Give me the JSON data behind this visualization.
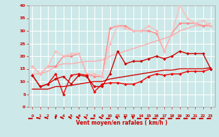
{
  "background_color": "#cce8e8",
  "grid_color": "#ffffff",
  "xlabel": "Vent moyen/en rafales ( km/h )",
  "xlim": [
    -0.5,
    23.5
  ],
  "ylim": [
    0,
    40
  ],
  "xticks": [
    0,
    1,
    2,
    3,
    4,
    5,
    6,
    7,
    8,
    9,
    10,
    11,
    12,
    13,
    14,
    15,
    16,
    17,
    18,
    19,
    20,
    21,
    22,
    23
  ],
  "yticks": [
    0,
    5,
    10,
    15,
    20,
    25,
    30,
    35,
    40
  ],
  "lines": [
    {
      "x": [
        0,
        1,
        2,
        3,
        4,
        5,
        6,
        7,
        8,
        9,
        10,
        11,
        12,
        13,
        14,
        15,
        16,
        17,
        18,
        19,
        20,
        21,
        22,
        23
      ],
      "y": [
        12.5,
        8,
        9,
        11,
        12,
        9,
        12.5,
        12,
        8,
        8,
        13,
        22,
        17,
        18,
        18,
        19,
        20,
        19,
        20,
        22,
        21,
        21,
        21,
        15
      ],
      "color": "#cc0000",
      "lw": 1.0,
      "marker": "D",
      "ms": 2.0,
      "zorder": 5
    },
    {
      "x": [
        0,
        1,
        2,
        3,
        4,
        5,
        6,
        7,
        8,
        9,
        10,
        11,
        12,
        13,
        14,
        15,
        16,
        17,
        18,
        19,
        20,
        21,
        22,
        23
      ],
      "y": [
        12.5,
        8,
        9,
        13,
        5,
        12.5,
        13,
        12.5,
        6,
        9,
        9.5,
        9.5,
        9,
        9,
        10,
        12,
        13,
        12.5,
        13,
        13,
        14,
        14,
        14,
        15
      ],
      "color": "#ee0000",
      "lw": 1.0,
      "marker": "D",
      "ms": 2.0,
      "zorder": 4
    },
    {
      "x": [
        0,
        1,
        2,
        3,
        4,
        5,
        6,
        7,
        8,
        9,
        10,
        11,
        12,
        13,
        14,
        15,
        16,
        17,
        18,
        19,
        20,
        21,
        22,
        23
      ],
      "y": [
        7,
        7,
        7,
        8,
        8,
        8.5,
        9,
        9.5,
        10,
        10,
        11,
        11.5,
        12,
        12.5,
        13,
        13.5,
        14,
        14.5,
        14.5,
        15,
        15,
        15,
        15,
        15.5
      ],
      "color": "#cc0000",
      "lw": 1.0,
      "marker": null,
      "ms": 0,
      "zorder": 3
    },
    {
      "x": [
        0,
        1,
        2,
        3,
        4,
        5,
        6,
        7,
        8,
        9,
        10,
        11,
        12,
        13,
        14,
        15,
        16,
        17,
        18,
        19,
        20,
        21,
        22,
        23
      ],
      "y": [
        16,
        13,
        16,
        16,
        20,
        20,
        21,
        13,
        12,
        12,
        31,
        32,
        32,
        30,
        30,
        30,
        29,
        22,
        29,
        33,
        33,
        33,
        32,
        32
      ],
      "color": "#ff8888",
      "lw": 1.0,
      "marker": "D",
      "ms": 2.0,
      "zorder": 3
    },
    {
      "x": [
        0,
        1,
        2,
        3,
        4,
        5,
        6,
        7,
        8,
        9,
        10,
        11,
        12,
        13,
        14,
        15,
        16,
        17,
        18,
        19,
        20,
        21,
        22,
        23
      ],
      "y": [
        16,
        13,
        16,
        22,
        20,
        21,
        21,
        13,
        13,
        12,
        25,
        32,
        31,
        30,
        30,
        32,
        30,
        22,
        29,
        40,
        35,
        33,
        34,
        32
      ],
      "color": "#ffbbbb",
      "lw": 1.0,
      "marker": "D",
      "ms": 2.0,
      "zorder": 3
    },
    {
      "x": [
        0,
        1,
        2,
        3,
        4,
        5,
        6,
        7,
        8,
        9,
        10,
        11,
        12,
        13,
        14,
        15,
        16,
        17,
        18,
        19,
        20,
        21,
        22,
        23
      ],
      "y": [
        13,
        13,
        14,
        16,
        17,
        17,
        17.5,
        18,
        18,
        18.5,
        20,
        21,
        22,
        23,
        24,
        25,
        26,
        27,
        28,
        30,
        31,
        32,
        32,
        33
      ],
      "color": "#ffaaaa",
      "lw": 1.0,
      "marker": null,
      "ms": 0,
      "zorder": 2
    }
  ],
  "wind_arrows": [
    270,
    250,
    240,
    180,
    230,
    220,
    220,
    220,
    270,
    230,
    270,
    210,
    190,
    190,
    270,
    270,
    270,
    270,
    270,
    270,
    270,
    270,
    270,
    270
  ]
}
